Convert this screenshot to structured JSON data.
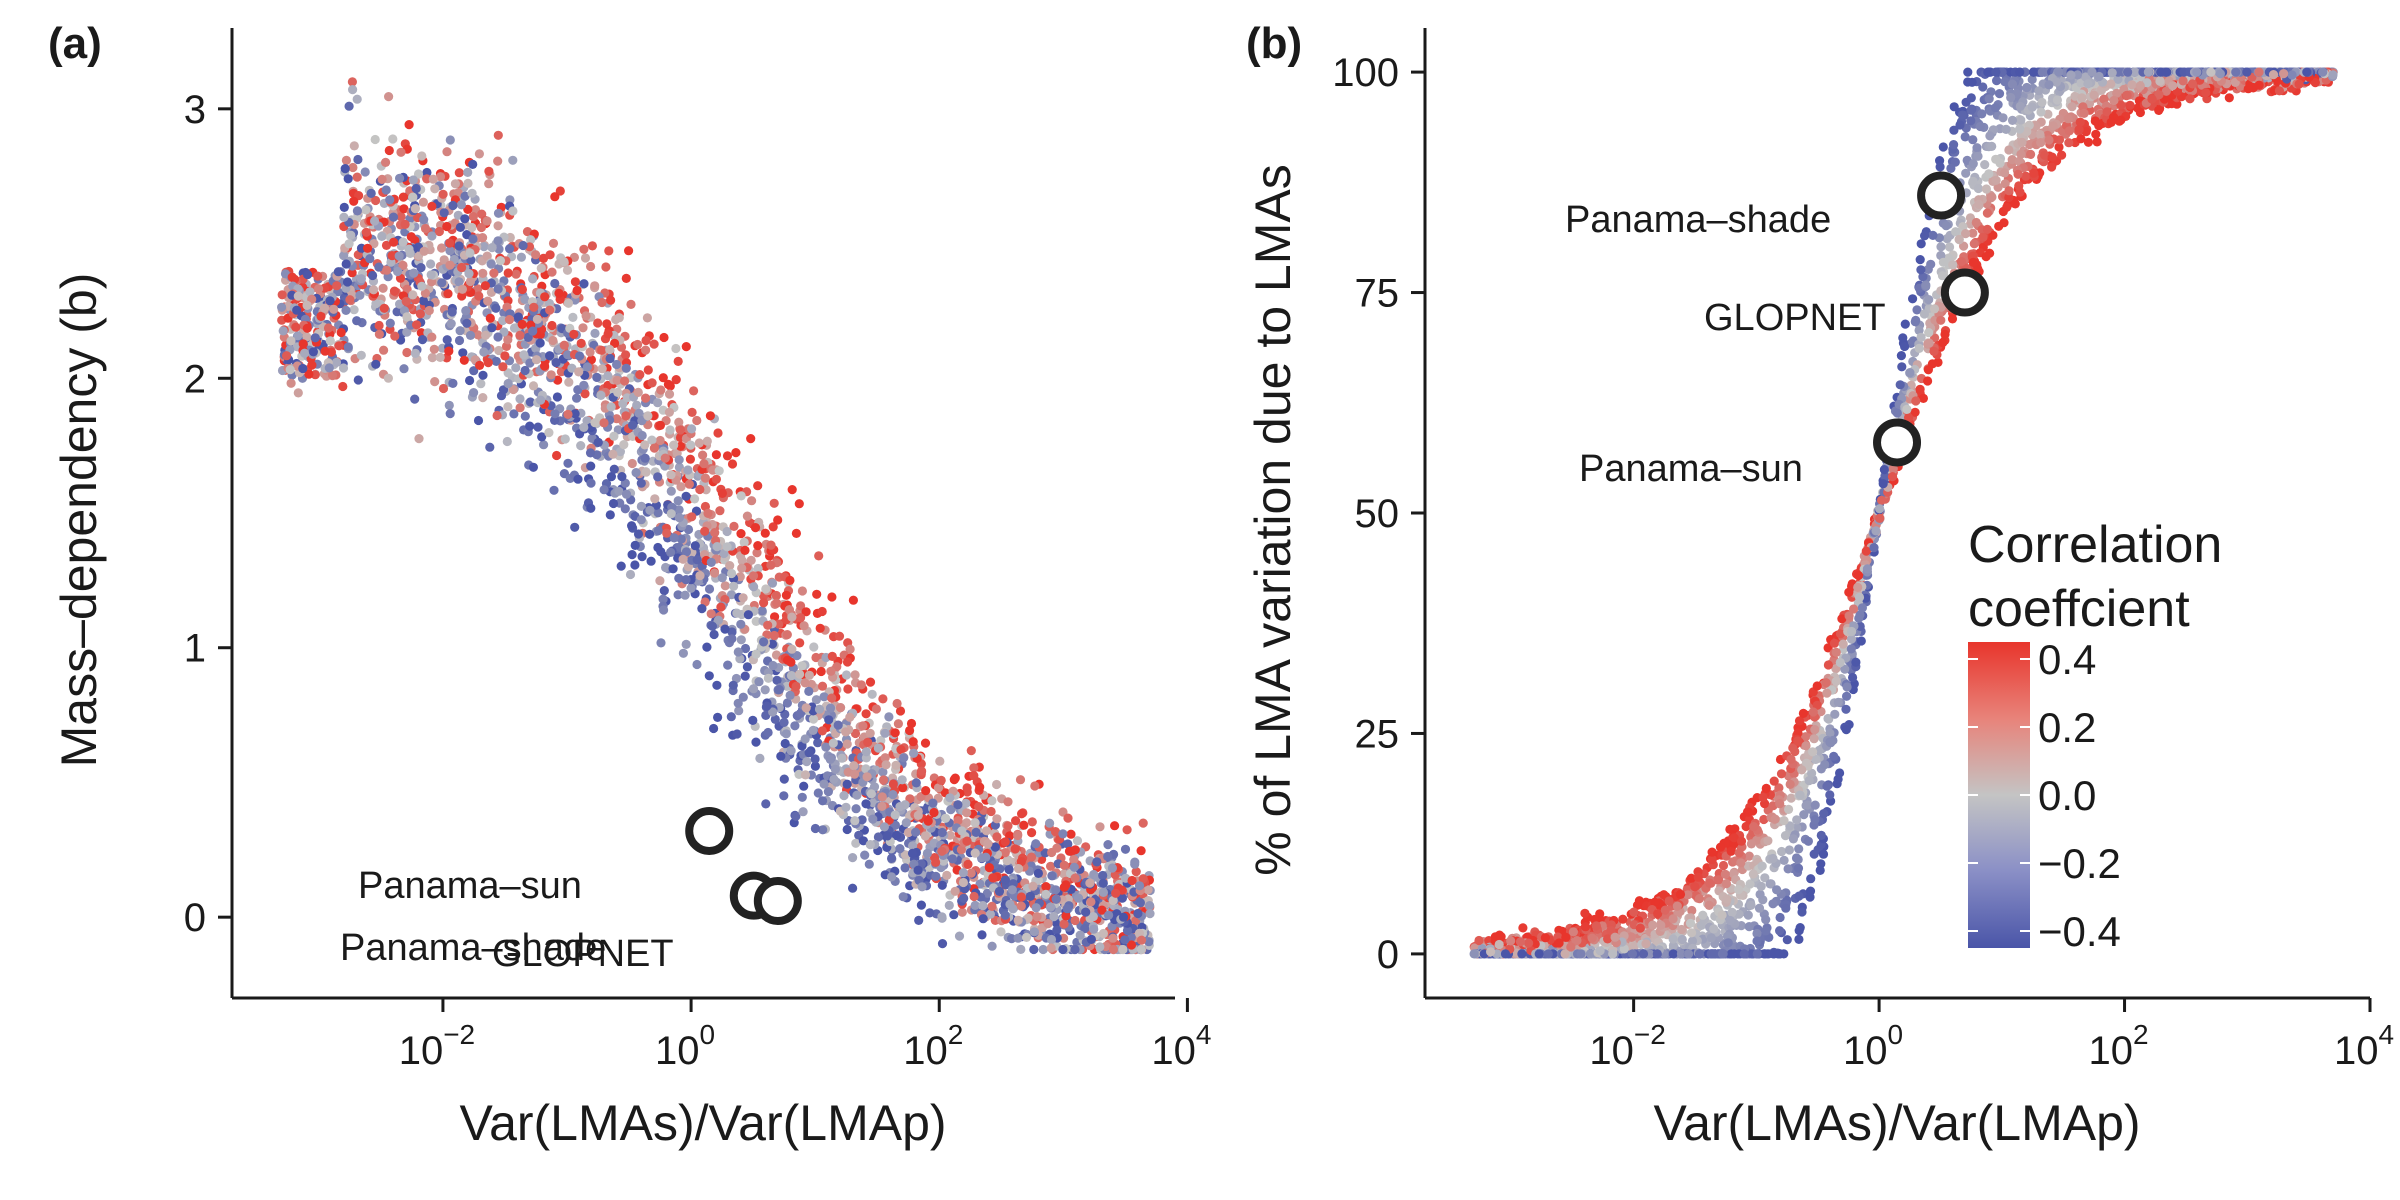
{
  "colors": {
    "high": "#e8352c",
    "mid": "#c4c4c4",
    "low": "#4a55a8",
    "marker_stroke": "#222222",
    "axis": "#1a1a1a"
  },
  "chart_data": [
    {
      "type": "scatter",
      "panel_label": "(a)",
      "xlabel": "Var(LMAs)/Var(LMAp)",
      "ylabel": "Mass–dependency (b)",
      "xscale": "log10",
      "xlim_log10": [
        -3.7,
        3.9
      ],
      "ylim": [
        -0.3,
        3.3
      ],
      "x_ticks": [
        {
          "base": "10",
          "exp": "−2",
          "log10": -2
        },
        {
          "base": "10",
          "exp": "0",
          "log10": 0
        },
        {
          "base": "10",
          "exp": "2",
          "log10": 2
        },
        {
          "base": "10",
          "exp": "4",
          "log10": 4
        }
      ],
      "y_ticks": [
        {
          "label": "0",
          "value": 0
        },
        {
          "label": "1",
          "value": 1
        },
        {
          "label": "2",
          "value": 2
        },
        {
          "label": "3",
          "value": 3
        }
      ],
      "color_by": "correlation coefficient",
      "highlighted_points": [
        {
          "label": "Panama–sun",
          "x": 1.4,
          "y": 0.32
        },
        {
          "label": "Panama–shade",
          "x": 3.2,
          "y": 0.08
        },
        {
          "label": "GLOPNET",
          "x": 5.0,
          "y": 0.06
        }
      ],
      "grid": false,
      "legend": "none"
    },
    {
      "type": "scatter",
      "panel_label": "(b)",
      "xlabel": "Var(LMAs)/Var(LMAp)",
      "ylabel": "% of LMA variation due to LMAs",
      "xscale": "log10",
      "xlim_log10": [
        -3.7,
        4.0
      ],
      "ylim": [
        -5,
        105
      ],
      "x_ticks": [
        {
          "base": "10",
          "exp": "−2",
          "log10": -2
        },
        {
          "base": "10",
          "exp": "0",
          "log10": 0
        },
        {
          "base": "10",
          "exp": "2",
          "log10": 2
        },
        {
          "base": "10",
          "exp": "4",
          "log10": 4
        }
      ],
      "y_ticks": [
        {
          "label": "0",
          "value": 0
        },
        {
          "label": "25",
          "value": 25
        },
        {
          "label": "50",
          "value": 50
        },
        {
          "label": "75",
          "value": 75
        },
        {
          "label": "100",
          "value": 100
        }
      ],
      "color_by": "correlation coefficient",
      "highlighted_points": [
        {
          "label": "Panama–shade",
          "x": 3.2,
          "y": 86
        },
        {
          "label": "GLOPNET",
          "x": 5.0,
          "y": 75
        },
        {
          "label": "Panama–sun",
          "x": 1.4,
          "y": 58
        }
      ],
      "grid": false,
      "legend": "right, inside plot"
    }
  ],
  "colorbar": {
    "title_line1": "Correlation",
    "title_line2": "coeffcient",
    "ticks": [
      {
        "label": "0.4",
        "value": 0.4
      },
      {
        "label": "0.2",
        "value": 0.2
      },
      {
        "label": "0.0",
        "value": 0.0
      },
      {
        "label": "−0.2",
        "value": -0.2
      },
      {
        "label": "−0.4",
        "value": -0.4
      }
    ],
    "range": [
      -0.45,
      0.45
    ]
  }
}
